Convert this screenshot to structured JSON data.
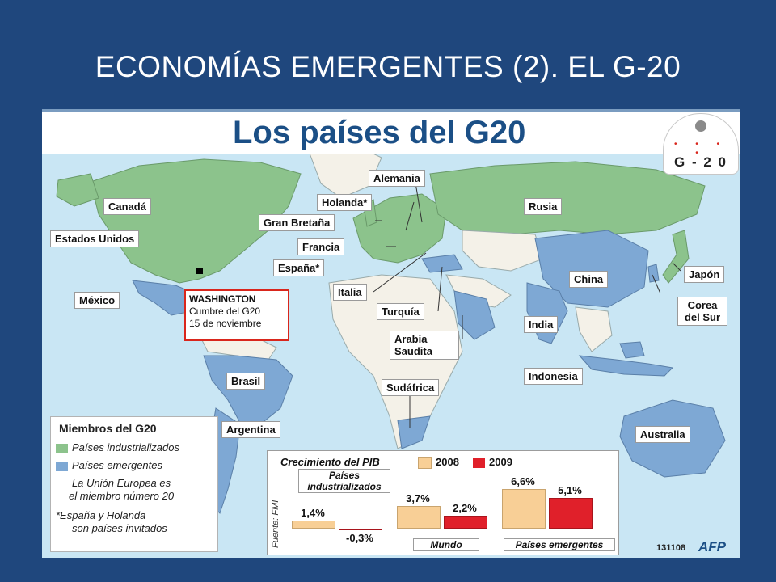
{
  "slide": {
    "title": "ECONOMÍAS EMERGENTES (2). EL G-20"
  },
  "map": {
    "title": "Los países del G20",
    "logo": {
      "letters": "G - 2 0",
      "name": "g20-logo"
    },
    "colors": {
      "industrialized": "#8cc38c",
      "emerging": "#7ea8d4",
      "other": "#f4f1e8",
      "ocean": "#c9e6f4"
    },
    "countries": {
      "canada": "Canadá",
      "usa": "Estados Unidos",
      "mexico": "México",
      "brazil": "Brasil",
      "argentina": "Argentina",
      "germany": "Alemania",
      "netherlands": "Holanda*",
      "uk": "Gran Bretaña",
      "france": "Francia",
      "spain": "España*",
      "italy": "Italia",
      "turkey": "Turquía",
      "saudi": "Arabia Saudita",
      "south_africa": "Sudáfrica",
      "russia": "Rusia",
      "china": "China",
      "india": "India",
      "japan": "Japón",
      "korea": "Corea del Sur",
      "indonesia": "Indonesia",
      "australia": "Australia"
    },
    "summit": {
      "city": "WASHINGTON",
      "line1": "Cumbre del G20",
      "line2": "15 de noviembre"
    },
    "legend": {
      "title": "Miembros del G20",
      "industrialized": "Países industrializados",
      "emerging": "Países emergentes",
      "eu_note_1": "La Unión Europea es",
      "eu_note_2": "el miembro número 20",
      "invited_note_1": "*España y Holanda",
      "invited_note_2": "son países invitados"
    },
    "footer": {
      "code": "131108",
      "agency": "AFP"
    }
  },
  "chart_data": {
    "type": "bar",
    "title": "Crecimiento del PIB",
    "source": "Fuente: FMI",
    "categories": [
      "Países industrializados",
      "Mundo",
      "Países emergentes"
    ],
    "series": [
      {
        "name": "2008",
        "color": "#f8cf96",
        "values": [
          1.4,
          3.7,
          6.6
        ],
        "labels": [
          "1,4%",
          "3,7%",
          "6,6%"
        ]
      },
      {
        "name": "2009",
        "color": "#e0202a",
        "values": [
          -0.3,
          2.2,
          5.1
        ],
        "labels": [
          "-0,3%",
          "2,2%",
          "5,1%"
        ]
      }
    ]
  }
}
